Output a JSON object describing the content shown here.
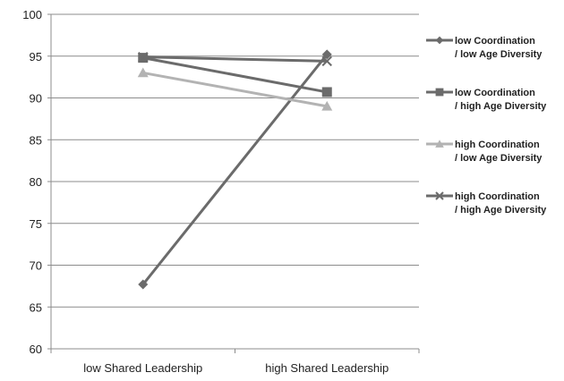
{
  "chart_data": {
    "type": "line",
    "title": "",
    "xlabel": "",
    "ylabel": "",
    "categories": [
      "low Shared Leadership",
      "high Shared Leadership"
    ],
    "ylim": [
      60,
      100
    ],
    "yticks": [
      60,
      65,
      70,
      75,
      80,
      85,
      90,
      95,
      100
    ],
    "grid": "horizontal",
    "legend_position": "right",
    "series": [
      {
        "name_lines": [
          "low Coordination",
          "/ low Age Diversity"
        ],
        "marker": "diamond",
        "color": "#6b6b6b",
        "values": [
          67.7,
          95.2
        ]
      },
      {
        "name_lines": [
          "low Coordination",
          "/ high Age Diversity"
        ],
        "marker": "square",
        "color": "#6b6b6b",
        "values": [
          94.8,
          90.7
        ]
      },
      {
        "name_lines": [
          "high Coordination",
          "/ low Age Diversity"
        ],
        "marker": "triangle",
        "color": "#b3b3b3",
        "values": [
          93.0,
          89.0
        ]
      },
      {
        "name_lines": [
          "high Coordination",
          "/ high Age Diversity"
        ],
        "marker": "x",
        "color": "#6b6b6b",
        "values": [
          94.9,
          94.4
        ]
      }
    ]
  }
}
